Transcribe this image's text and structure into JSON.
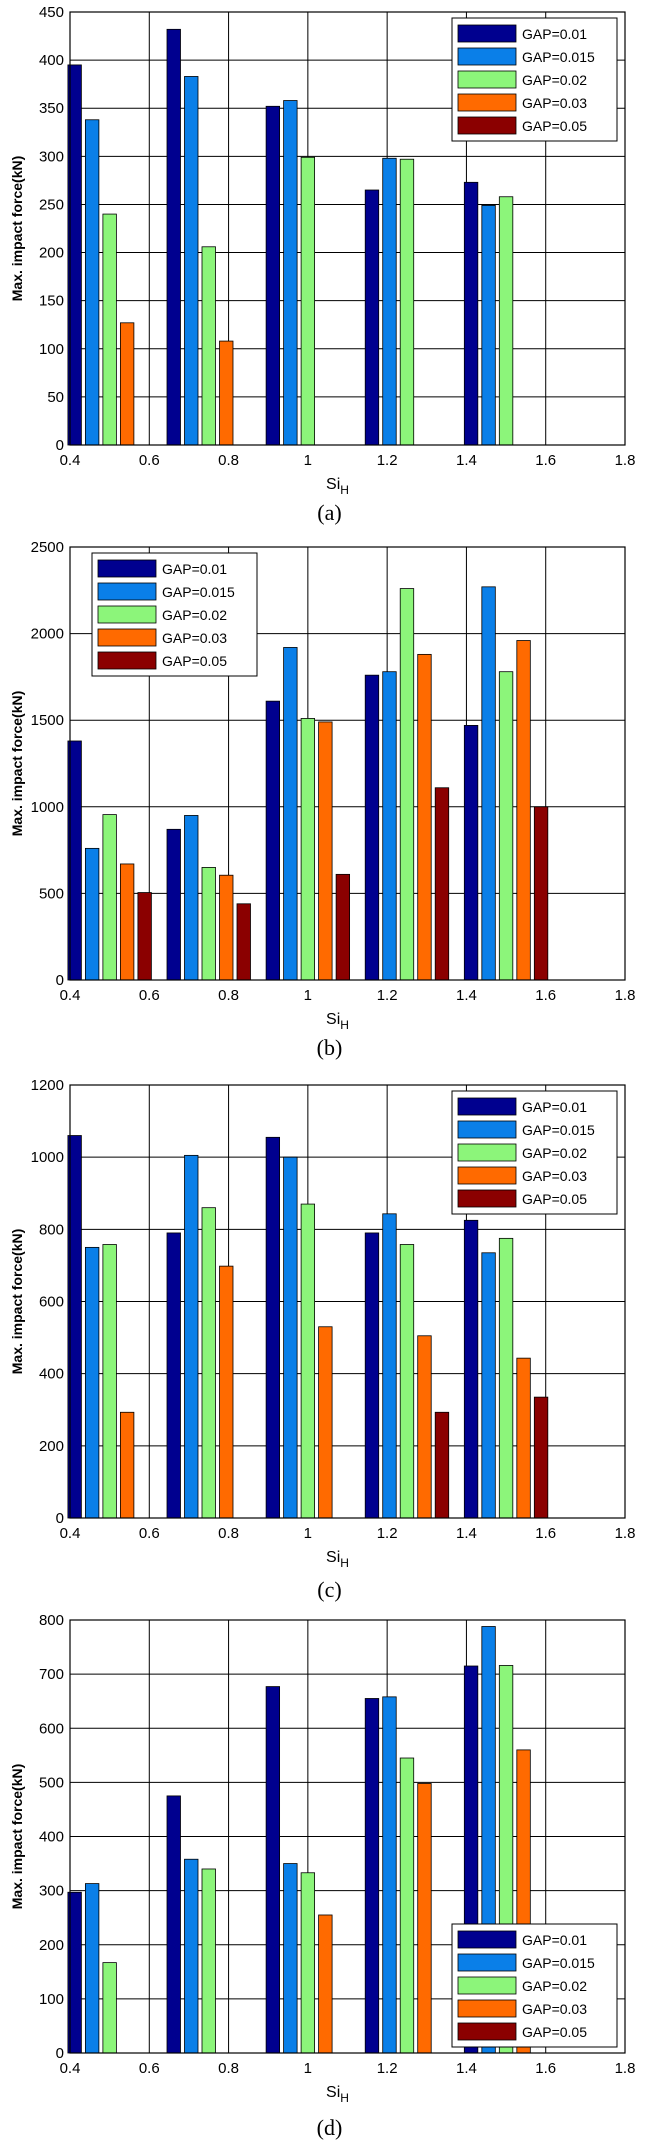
{
  "chart_data": [
    {
      "panel": "a",
      "caption": "(a)",
      "type": "bar",
      "xlabel": "Si",
      "xlabel_sub": "H",
      "ylabel": "Max. impact force(kN)",
      "xlim": [
        0.4,
        1.8
      ],
      "xticks": [
        "0.4",
        "0.6",
        "0.8",
        "1",
        "1.2",
        "1.4",
        "1.6",
        "1.8"
      ],
      "ylim": [
        0,
        450
      ],
      "yticks": [
        "0",
        "50",
        "100",
        "150",
        "200",
        "250",
        "300",
        "350",
        "400",
        "450"
      ],
      "grid": true,
      "legend_position": "top-right",
      "categories": [
        0.5,
        0.75,
        1.0,
        1.25,
        1.5
      ],
      "series": [
        {
          "name": "GAP=0.01",
          "color": "#00008f",
          "values": [
            395,
            432,
            352,
            265,
            273
          ]
        },
        {
          "name": "GAP=0.015",
          "color": "#0a7fe8",
          "values": [
            338,
            383,
            358,
            298,
            249
          ]
        },
        {
          "name": "GAP=0.02",
          "color": "#8cf57a",
          "values": [
            240,
            206,
            299,
            297,
            258
          ]
        },
        {
          "name": "GAP=0.03",
          "color": "#ff6a00",
          "values": [
            127,
            108,
            0,
            0,
            0
          ]
        },
        {
          "name": "GAP=0.05",
          "color": "#8b0000",
          "values": [
            0,
            0,
            0,
            0,
            0
          ]
        }
      ]
    },
    {
      "panel": "b",
      "caption": "(b)",
      "type": "bar",
      "xlabel": "Si",
      "xlabel_sub": "H",
      "ylabel": "Max. impact force(kN)",
      "xlim": [
        0.4,
        1.8
      ],
      "xticks": [
        "0.4",
        "0.6",
        "0.8",
        "1",
        "1.2",
        "1.4",
        "1.6",
        "1.8"
      ],
      "ylim": [
        0,
        2500
      ],
      "yticks": [
        "0",
        "500",
        "1000",
        "1500",
        "2000",
        "2500"
      ],
      "grid": true,
      "legend_position": "top-left",
      "categories": [
        0.5,
        0.75,
        1.0,
        1.25,
        1.5
      ],
      "series": [
        {
          "name": "GAP=0.01",
          "color": "#00008f",
          "values": [
            1380,
            870,
            1610,
            1760,
            1470
          ]
        },
        {
          "name": "GAP=0.015",
          "color": "#0a7fe8",
          "values": [
            760,
            950,
            1920,
            1780,
            2270
          ]
        },
        {
          "name": "GAP=0.02",
          "color": "#8cf57a",
          "values": [
            955,
            650,
            1510,
            2260,
            1780
          ]
        },
        {
          "name": "GAP=0.03",
          "color": "#ff6a00",
          "values": [
            670,
            605,
            1490,
            1880,
            1960
          ]
        },
        {
          "name": "GAP=0.05",
          "color": "#8b0000",
          "values": [
            505,
            440,
            610,
            1110,
            1000
          ]
        }
      ]
    },
    {
      "panel": "c",
      "caption": "(c)",
      "type": "bar",
      "xlabel": "Si",
      "xlabel_sub": "H",
      "ylabel": "Max. impact force(kN)",
      "xlim": [
        0.4,
        1.8
      ],
      "xticks": [
        "0.4",
        "0.6",
        "0.8",
        "1",
        "1.2",
        "1.4",
        "1.6",
        "1.8"
      ],
      "ylim": [
        0,
        1200
      ],
      "yticks": [
        "0",
        "200",
        "400",
        "600",
        "800",
        "1000",
        "1200"
      ],
      "grid": true,
      "legend_position": "top-right",
      "categories": [
        0.5,
        0.75,
        1.0,
        1.25,
        1.5
      ],
      "series": [
        {
          "name": "GAP=0.01",
          "color": "#00008f",
          "values": [
            1060,
            790,
            1055,
            790,
            825
          ]
        },
        {
          "name": "GAP=0.015",
          "color": "#0a7fe8",
          "values": [
            750,
            1005,
            1000,
            843,
            735
          ]
        },
        {
          "name": "GAP=0.02",
          "color": "#8cf57a",
          "values": [
            758,
            860,
            870,
            758,
            775
          ]
        },
        {
          "name": "GAP=0.03",
          "color": "#ff6a00",
          "values": [
            293,
            698,
            530,
            505,
            443
          ]
        },
        {
          "name": "GAP=0.05",
          "color": "#8b0000",
          "values": [
            0,
            0,
            0,
            293,
            335
          ]
        }
      ]
    },
    {
      "panel": "d",
      "caption": "(d)",
      "type": "bar",
      "xlabel": "Si",
      "xlabel_sub": "H",
      "ylabel": "Max. impact force(kN)",
      "xlim": [
        0.4,
        1.8
      ],
      "xticks": [
        "0.4",
        "0.6",
        "0.8",
        "1",
        "1.2",
        "1.4",
        "1.6",
        "1.8"
      ],
      "ylim": [
        0,
        800
      ],
      "yticks": [
        "0",
        "100",
        "200",
        "300",
        "400",
        "500",
        "600",
        "700",
        "800"
      ],
      "grid": true,
      "legend_position": "bottom-right",
      "categories": [
        0.5,
        0.75,
        1.0,
        1.25,
        1.5
      ],
      "series": [
        {
          "name": "GAP=0.01",
          "color": "#00008f",
          "values": [
            297,
            475,
            677,
            655,
            715
          ]
        },
        {
          "name": "GAP=0.015",
          "color": "#0a7fe8",
          "values": [
            313,
            358,
            350,
            658,
            788
          ]
        },
        {
          "name": "GAP=0.02",
          "color": "#8cf57a",
          "values": [
            167,
            340,
            333,
            545,
            716
          ]
        },
        {
          "name": "GAP=0.03",
          "color": "#ff6a00",
          "values": [
            0,
            0,
            255,
            498,
            560
          ]
        },
        {
          "name": "GAP=0.05",
          "color": "#8b0000",
          "values": [
            0,
            0,
            0,
            0,
            0
          ]
        }
      ]
    }
  ]
}
